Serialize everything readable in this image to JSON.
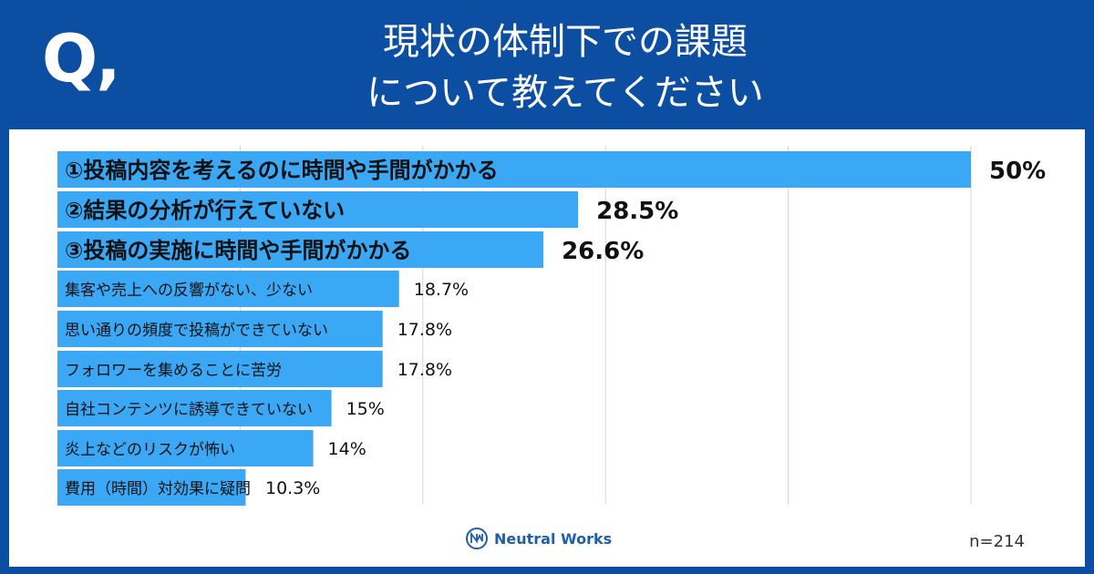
{
  "header": {
    "q_mark": "Q,",
    "title_line1": "現状の体制下での課題",
    "title_line2": "について教えてください"
  },
  "footer": {
    "brand": "Neutral Works",
    "n": "n=214"
  },
  "colors": {
    "background": "#0c4ea2",
    "bar": "#3ba8f6",
    "grid": "#d4d4d4",
    "text": "#111111"
  },
  "chart_data": {
    "type": "bar",
    "orientation": "horizontal",
    "categories": [
      "①投稿内容を考えるのに時間や手間がかかる",
      "②結果の分析が行えていない",
      "③投稿の実施に時間や手間がかかる",
      "集客や売上への反響がない、少ない",
      "思い通りの頻度で投稿ができていない",
      "フォロワーを集めることに苦労",
      "自社コンテンツに誘導できていない",
      "炎上などのリスクが怖い",
      "費用（時間）対効果に疑問"
    ],
    "values": [
      50,
      28.5,
      26.6,
      18.7,
      17.8,
      17.8,
      15,
      14,
      10.3
    ],
    "value_labels": [
      "50%",
      "28.5%",
      "26.6%",
      "18.7%",
      "17.8%",
      "17.8%",
      "15%",
      "14%",
      "10.3%"
    ],
    "highlighted_top": 3,
    "xlim": [
      0,
      50
    ],
    "grid": true
  }
}
